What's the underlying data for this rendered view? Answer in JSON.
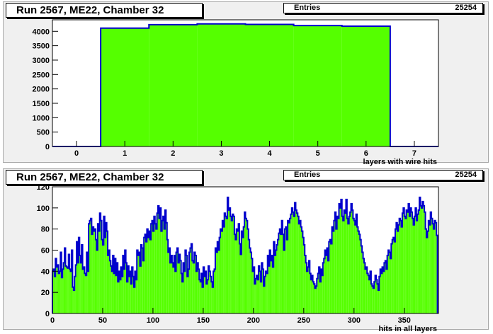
{
  "colors": {
    "fill": "#55ff00",
    "line": "#0000cc",
    "pad": "#f0f0f0"
  },
  "chart_data": [
    {
      "type": "bar",
      "title": "Run 2567, ME22, Chamber 32",
      "stats": {
        "label": "Entries",
        "value": "25254"
      },
      "xlabel": "layers with wire hits",
      "ylabel": "",
      "xlim": [
        -0.5,
        7.5
      ],
      "ylim": [
        0,
        4400
      ],
      "x_ticks": [
        0,
        1,
        2,
        3,
        4,
        5,
        6,
        7
      ],
      "y_ticks": [
        0,
        500,
        1000,
        1500,
        2000,
        2500,
        3000,
        3500,
        4000
      ],
      "categories": [
        0,
        1,
        2,
        3,
        4,
        5,
        6,
        7
      ],
      "values": [
        0,
        4110,
        4230,
        4260,
        4240,
        4200,
        4180,
        0
      ]
    },
    {
      "type": "bar",
      "title": "Run 2567, ME22, Chamber 32",
      "stats": {
        "label": "Entries",
        "value": "25254"
      },
      "xlabel": "hits in all layers",
      "ylabel": "",
      "xlim": [
        0,
        384
      ],
      "ylim": [
        0,
        120
      ],
      "x_ticks": [
        0,
        50,
        100,
        150,
        200,
        250,
        300,
        350
      ],
      "y_ticks": [
        0,
        20,
        40,
        60,
        80,
        100,
        120
      ],
      "bin_width": 1,
      "x_start": 0,
      "values": [
        40,
        42,
        35,
        52,
        44,
        46,
        38,
        40,
        58,
        34,
        42,
        48,
        62,
        45,
        44,
        43,
        56,
        42,
        40,
        60,
        25,
        22,
        35,
        46,
        68,
        48,
        72,
        55,
        48,
        65,
        42,
        44,
        38,
        36,
        58,
        40,
        85,
        88,
        90,
        75,
        82,
        78,
        80,
        70,
        60,
        85,
        78,
        95,
        88,
        70,
        65,
        92,
        72,
        86,
        78,
        55,
        60,
        50,
        45,
        40,
        55,
        38,
        52,
        36,
        48,
        30,
        40,
        32,
        44,
        35,
        55,
        42,
        60,
        48,
        30,
        45,
        35,
        40,
        28,
        44,
        35,
        25,
        40,
        32,
        60,
        55,
        58,
        45,
        65,
        62,
        50,
        72,
        75,
        68,
        80,
        72,
        78,
        70,
        85,
        88,
        78,
        92,
        85,
        80,
        95,
        102,
        90,
        100,
        78,
        88,
        92,
        80,
        98,
        86,
        70,
        58,
        62,
        48,
        55,
        48,
        44,
        55,
        40,
        58,
        62,
        48,
        56,
        50,
        38,
        30,
        48,
        40,
        60,
        55,
        35,
        42,
        58,
        62,
        66,
        50,
        48,
        58,
        55,
        40,
        48,
        42,
        32,
        30,
        38,
        25,
        44,
        35,
        40,
        28,
        32,
        45,
        40,
        35,
        30,
        25,
        40,
        42,
        62,
        58,
        68,
        60,
        72,
        80,
        78,
        88,
        82,
        95,
        92,
        90,
        110,
        98,
        100,
        92,
        88,
        94,
        92,
        75,
        70,
        80,
        78,
        85,
        66,
        56,
        78,
        72,
        82,
        96,
        90,
        88,
        80,
        70,
        62,
        58,
        52,
        40,
        44,
        28,
        33,
        36,
        32,
        45,
        40,
        30,
        48,
        42,
        26,
        35,
        40,
        38,
        55,
        45,
        60,
        50,
        55,
        44,
        68,
        55,
        60,
        65,
        70,
        76,
        80,
        75,
        88,
        75,
        60,
        80,
        82,
        70,
        88,
        86,
        90,
        94,
        100,
        96,
        92,
        105,
        98,
        95,
        92,
        85,
        88,
        82,
        78,
        72,
        65,
        55,
        48,
        40,
        44,
        50,
        38,
        32,
        36,
        30,
        28,
        24,
        26,
        33,
        38,
        44,
        30,
        42,
        36,
        48,
        52,
        60,
        55,
        62,
        50,
        68,
        70,
        66,
        82,
        78,
        88,
        96,
        80,
        92,
        90,
        104,
        100,
        108,
        92,
        88,
        98,
        95,
        108,
        90,
        85,
        92,
        96,
        104,
        98,
        90,
        88,
        84,
        94,
        82,
        78,
        75,
        70,
        64,
        58,
        52,
        48,
        42,
        44,
        38,
        36,
        32,
        40,
        28,
        26,
        24,
        30,
        36,
        32,
        28,
        22,
        35,
        42,
        38,
        44,
        40,
        48,
        50,
        42,
        55,
        60,
        58,
        52,
        66,
        70,
        72,
        68,
        80,
        86,
        78,
        84,
        90,
        88,
        82,
        95,
        100,
        92,
        90,
        98,
        96,
        104,
        92,
        100,
        96,
        90,
        84,
        92,
        100,
        88,
        94,
        98,
        110,
        102,
        100,
        106,
        102,
        96,
        80,
        72,
        78,
        88,
        84,
        96,
        90,
        85,
        80,
        88,
        86,
        74
      ]
    }
  ]
}
